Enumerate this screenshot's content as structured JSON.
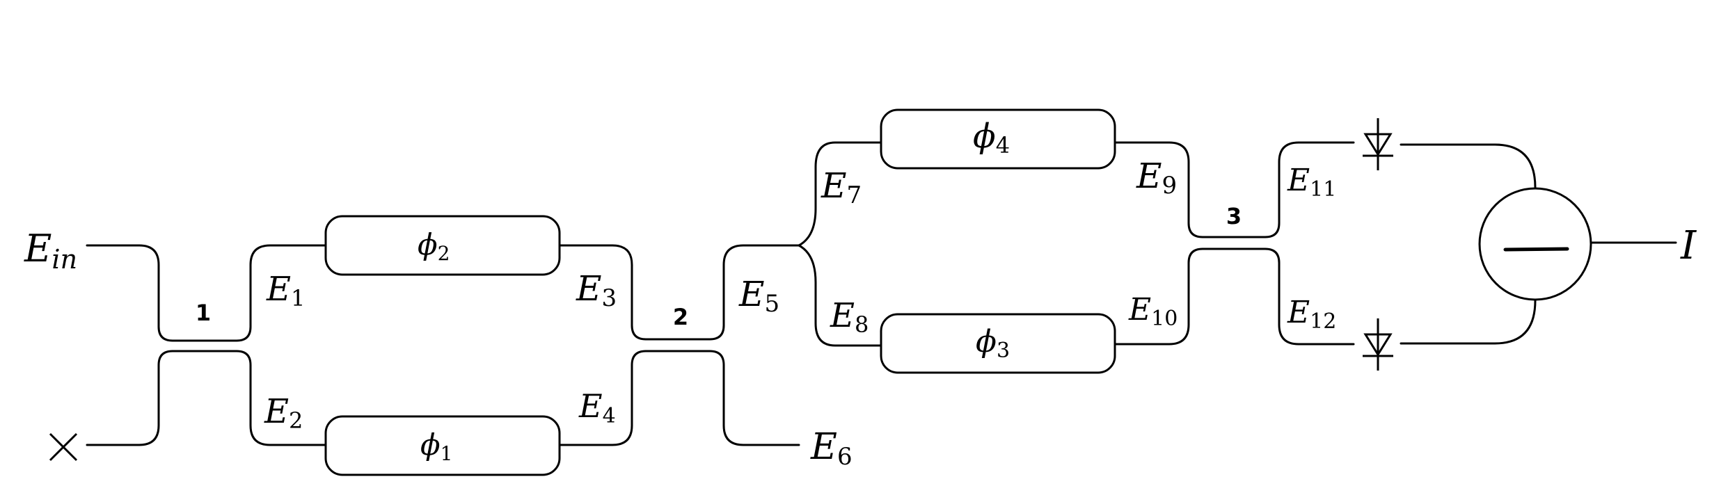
{
  "labels": {
    "input": {
      "main": "E",
      "sub": "in"
    },
    "output": "I",
    "fields": [
      {
        "main": "E",
        "sub": "1"
      },
      {
        "main": "E",
        "sub": "2"
      },
      {
        "main": "E",
        "sub": "3"
      },
      {
        "main": "E",
        "sub": "4"
      },
      {
        "main": "E",
        "sub": "5"
      },
      {
        "main": "E",
        "sub": "6"
      },
      {
        "main": "E",
        "sub": "7"
      },
      {
        "main": "E",
        "sub": "8"
      },
      {
        "main": "E",
        "sub": "9"
      },
      {
        "main": "E",
        "sub": "10"
      },
      {
        "main": "E",
        "sub": "11"
      },
      {
        "main": "E",
        "sub": "12"
      }
    ],
    "phase_shifters": [
      {
        "main": "ϕ",
        "sub": "1"
      },
      {
        "main": "ϕ",
        "sub": "2"
      },
      {
        "main": "ϕ",
        "sub": "3"
      },
      {
        "main": "ϕ",
        "sub": "4"
      }
    ],
    "couplers": [
      "1",
      "2",
      "3"
    ]
  }
}
